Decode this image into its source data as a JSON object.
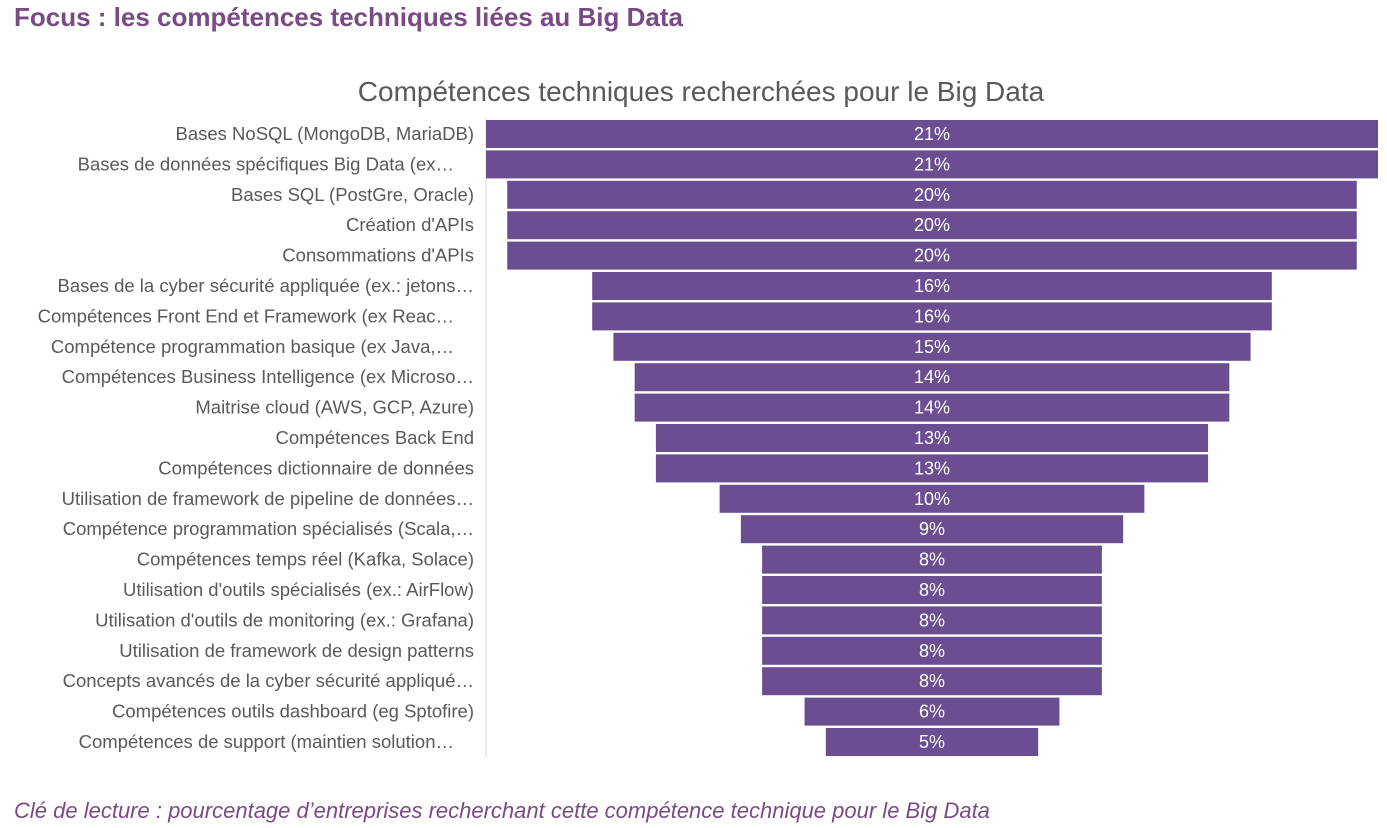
{
  "page": {
    "title": "Focus : les compétences techniques liées au Big Data",
    "footnote": "Clé de lecture : pourcentage d’entreprises recherchant cette compétence technique pour le Big Data"
  },
  "colors": {
    "bar": "#6b4e91",
    "title": "#7a4a84",
    "label": "#595959",
    "axis": "#d9d9d9"
  },
  "chart_data": {
    "type": "bar",
    "orientation": "horizontal",
    "style": "funnel-centered",
    "title": "Compétences techniques recherchées pour le Big Data",
    "xlabel": "",
    "ylabel": "",
    "unit": "%",
    "grid": false,
    "legend": "none",
    "categories": [
      "Bases NoSQL (MongoDB, MariaDB)",
      "Bases de données spécifiques Big Data (ex…",
      "Bases SQL (PostGre, Oracle)",
      "Création d'APIs",
      "Consommations d'APIs",
      "Bases de la cyber sécurité appliquée (ex.: jetons…",
      "Compétences Front End et Framework (ex Reac…",
      "Compétence programmation basique (ex Java,…",
      "Compétences Business Intelligence (ex Microso…",
      "Maitrise cloud (AWS, GCP, Azure)",
      "Compétences Back End",
      "Compétences dictionnaire de données",
      "Utilisation de framework de pipeline de données…",
      "Compétence programmation spécialisés (Scala,…",
      "Compétences temps réel (Kafka, Solace)",
      "Utilisation d'outils spécialisés (ex.: AirFlow)",
      "Utilisation d'outils de monitoring (ex.: Grafana)",
      "Utilisation de framework de design patterns",
      "Concepts avancés de la cyber sécurité appliqué…",
      "Compétences outils dashboard (eg Sptofire)",
      "Compétences de support (maintien solution…"
    ],
    "values": [
      21,
      21,
      20,
      20,
      20,
      16,
      16,
      15,
      14,
      14,
      13,
      13,
      10,
      9,
      8,
      8,
      8,
      8,
      8,
      6,
      5
    ],
    "value_labels": [
      "21%",
      "21%",
      "20%",
      "20%",
      "20%",
      "16%",
      "16%",
      "15%",
      "14%",
      "14%",
      "13%",
      "13%",
      "10%",
      "9%",
      "8%",
      "8%",
      "8%",
      "8%",
      "8%",
      "6%",
      "5%"
    ],
    "xlim": [
      0,
      21
    ]
  }
}
